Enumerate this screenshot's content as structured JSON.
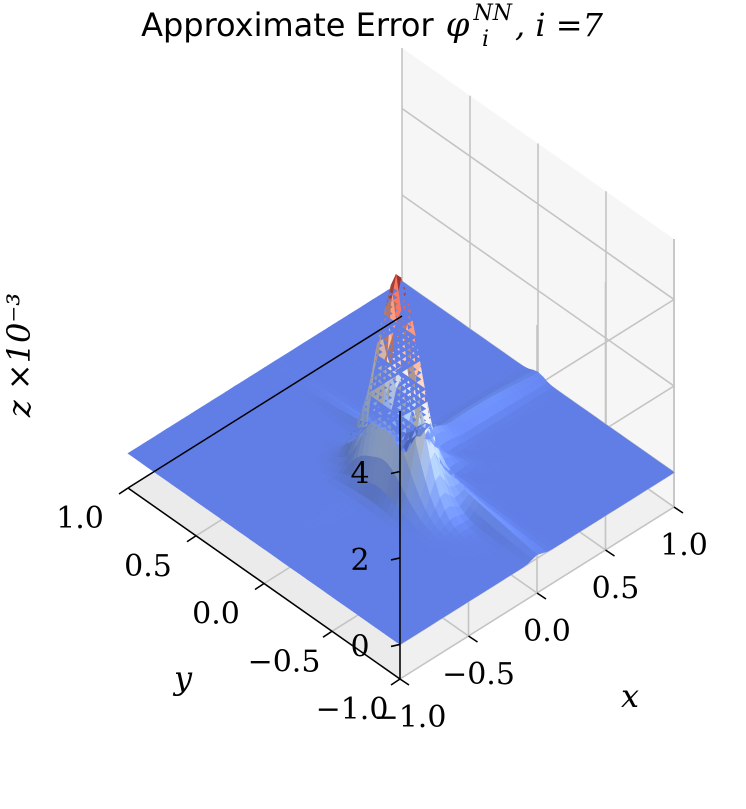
{
  "title": {
    "prefix": "Approximate Error",
    "symbol": "φ",
    "superscript": "NN",
    "subscript": "i",
    "suffix": ", i =7"
  },
  "chart_data": {
    "type": "surface",
    "title": "Approximate Error φ_i^{NN}, i =7",
    "xlabel": "x",
    "ylabel": "y",
    "zlabel": "z ×10⁻³",
    "xlim": [
      -1.0,
      1.0
    ],
    "ylim": [
      -1.0,
      1.0
    ],
    "zlim": [
      -0.8,
      5.4
    ],
    "x_ticks": [
      "−1.0",
      "−0.5",
      "0.0",
      "0.5",
      "1.0"
    ],
    "y_ticks": [
      "−1.0",
      "−0.5",
      "0.0",
      "0.5",
      "1.0"
    ],
    "z_ticks": [
      "0",
      "2",
      "4"
    ],
    "z_scale_label": "×10⁻³",
    "colormap": "coolwarm",
    "colormap_stops": [
      "#3b4cc0",
      "#6a8bef",
      "#aac7fd",
      "#dddcdc",
      "#f6b69b",
      "#e7745b",
      "#b40426"
    ],
    "grid": true,
    "surface_features": {
      "peak": {
        "x": 0.0,
        "y": 0.0,
        "z": 5.2
      },
      "trough": {
        "x": 0.1,
        "y": 0.1,
        "z": -0.8
      },
      "background_level": 0.0
    }
  }
}
